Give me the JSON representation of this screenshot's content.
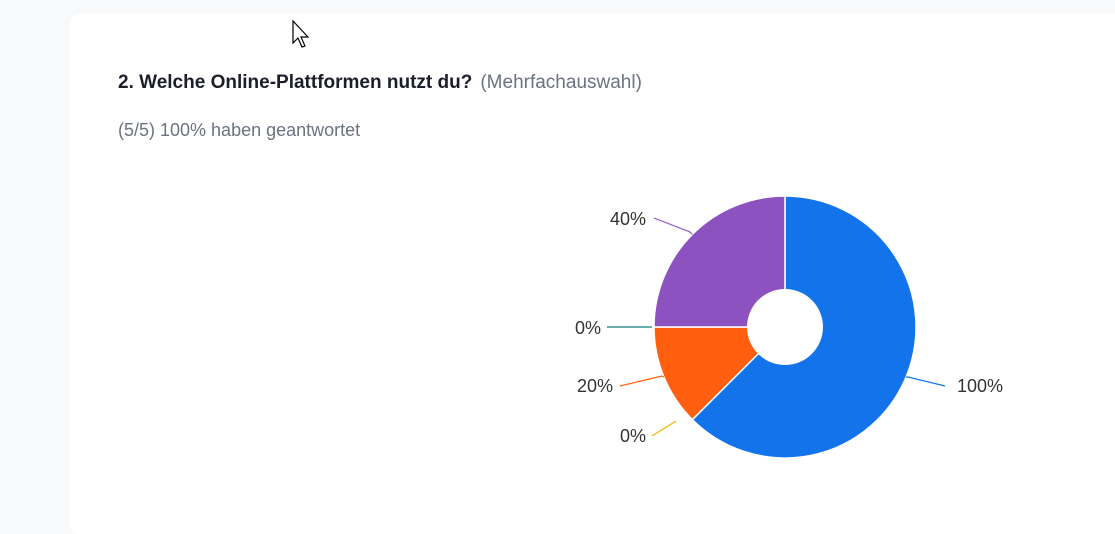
{
  "question": {
    "title": "2. Welche Online-Plattformen nutzt du?",
    "hint": "(Mehrfachauswahl)",
    "responses": "(5/5) 100% haben geantwortet"
  },
  "chart_data": {
    "type": "pie",
    "style": "donut",
    "slices": [
      {
        "label": "100%",
        "value": 100,
        "color": "#1273eb"
      },
      {
        "label": "0%",
        "value": 0,
        "color": "#f5b301"
      },
      {
        "label": "20%",
        "value": 20,
        "color": "#ff5f0f"
      },
      {
        "label": "0%",
        "value": 0,
        "color": "#0d7a7a"
      },
      {
        "label": "40%",
        "value": 40,
        "color": "#8b52c0"
      }
    ]
  },
  "icons": {
    "cursor": "mouse-pointer-icon"
  }
}
